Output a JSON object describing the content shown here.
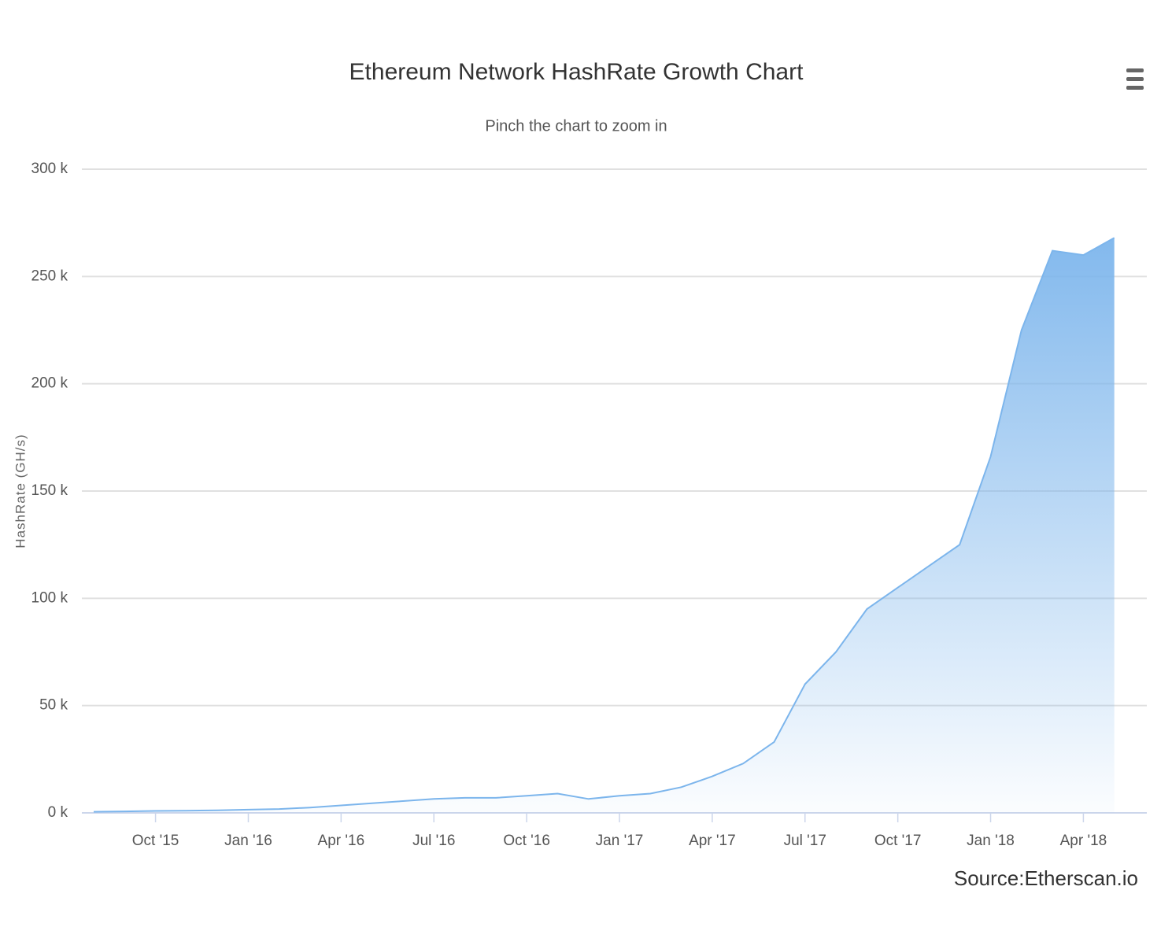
{
  "chart_data": {
    "type": "area",
    "title": "Ethereum Network HashRate Growth Chart",
    "subtitle": "Pinch the chart to zoom in",
    "y_label": "HashRate (GH/s)",
    "credit": "Source:Etherscan.io",
    "color": "#7cb5ec",
    "grid": true,
    "x": [
      "2015-08",
      "2015-09",
      "2015-10",
      "2015-11",
      "2015-12",
      "2016-01",
      "2016-02",
      "2016-03",
      "2016-04",
      "2016-05",
      "2016-06",
      "2016-07",
      "2016-08",
      "2016-09",
      "2016-10",
      "2016-11",
      "2016-12",
      "2017-01",
      "2017-02",
      "2017-03",
      "2017-04",
      "2017-05",
      "2017-06",
      "2017-07",
      "2017-08",
      "2017-09",
      "2017-10",
      "2017-11",
      "2017-12",
      "2018-01",
      "2018-02",
      "2018-03",
      "2018-04",
      "2018-05"
    ],
    "series": [
      {
        "name": "HashRate",
        "color": "#7cb5ec",
        "values": [
          500,
          700,
          900,
          1000,
          1200,
          1500,
          1800,
          2500,
          3500,
          4500,
          5500,
          6500,
          7000,
          7000,
          8000,
          9000,
          6500,
          8000,
          9000,
          12000,
          17000,
          23000,
          33000,
          60000,
          75000,
          95000,
          105000,
          115000,
          125000,
          166000,
          225000,
          262000,
          260000,
          268000
        ]
      }
    ],
    "xlim": [
      "2015-08",
      "2018-06"
    ],
    "xticks": [
      {
        "value": "2015-10",
        "label": "Oct '15"
      },
      {
        "value": "2016-01",
        "label": "Jan '16"
      },
      {
        "value": "2016-04",
        "label": "Apr '16"
      },
      {
        "value": "2016-07",
        "label": "Jul '16"
      },
      {
        "value": "2016-10",
        "label": "Oct '16"
      },
      {
        "value": "2017-01",
        "label": "Jan '17"
      },
      {
        "value": "2017-04",
        "label": "Apr '17"
      },
      {
        "value": "2017-07",
        "label": "Jul '17"
      },
      {
        "value": "2017-10",
        "label": "Oct '17"
      },
      {
        "value": "2018-01",
        "label": "Jan '18"
      },
      {
        "value": "2018-04",
        "label": "Apr '18"
      }
    ],
    "ylim": [
      0,
      300000
    ],
    "yticks": [
      {
        "value": 0,
        "label": "0 k"
      },
      {
        "value": 50000,
        "label": "50 k"
      },
      {
        "value": 100000,
        "label": "100 k"
      },
      {
        "value": 150000,
        "label": "150 k"
      },
      {
        "value": 200000,
        "label": "200 k"
      },
      {
        "value": 250000,
        "label": "250 k"
      },
      {
        "value": 300000,
        "label": "300 k"
      }
    ]
  }
}
